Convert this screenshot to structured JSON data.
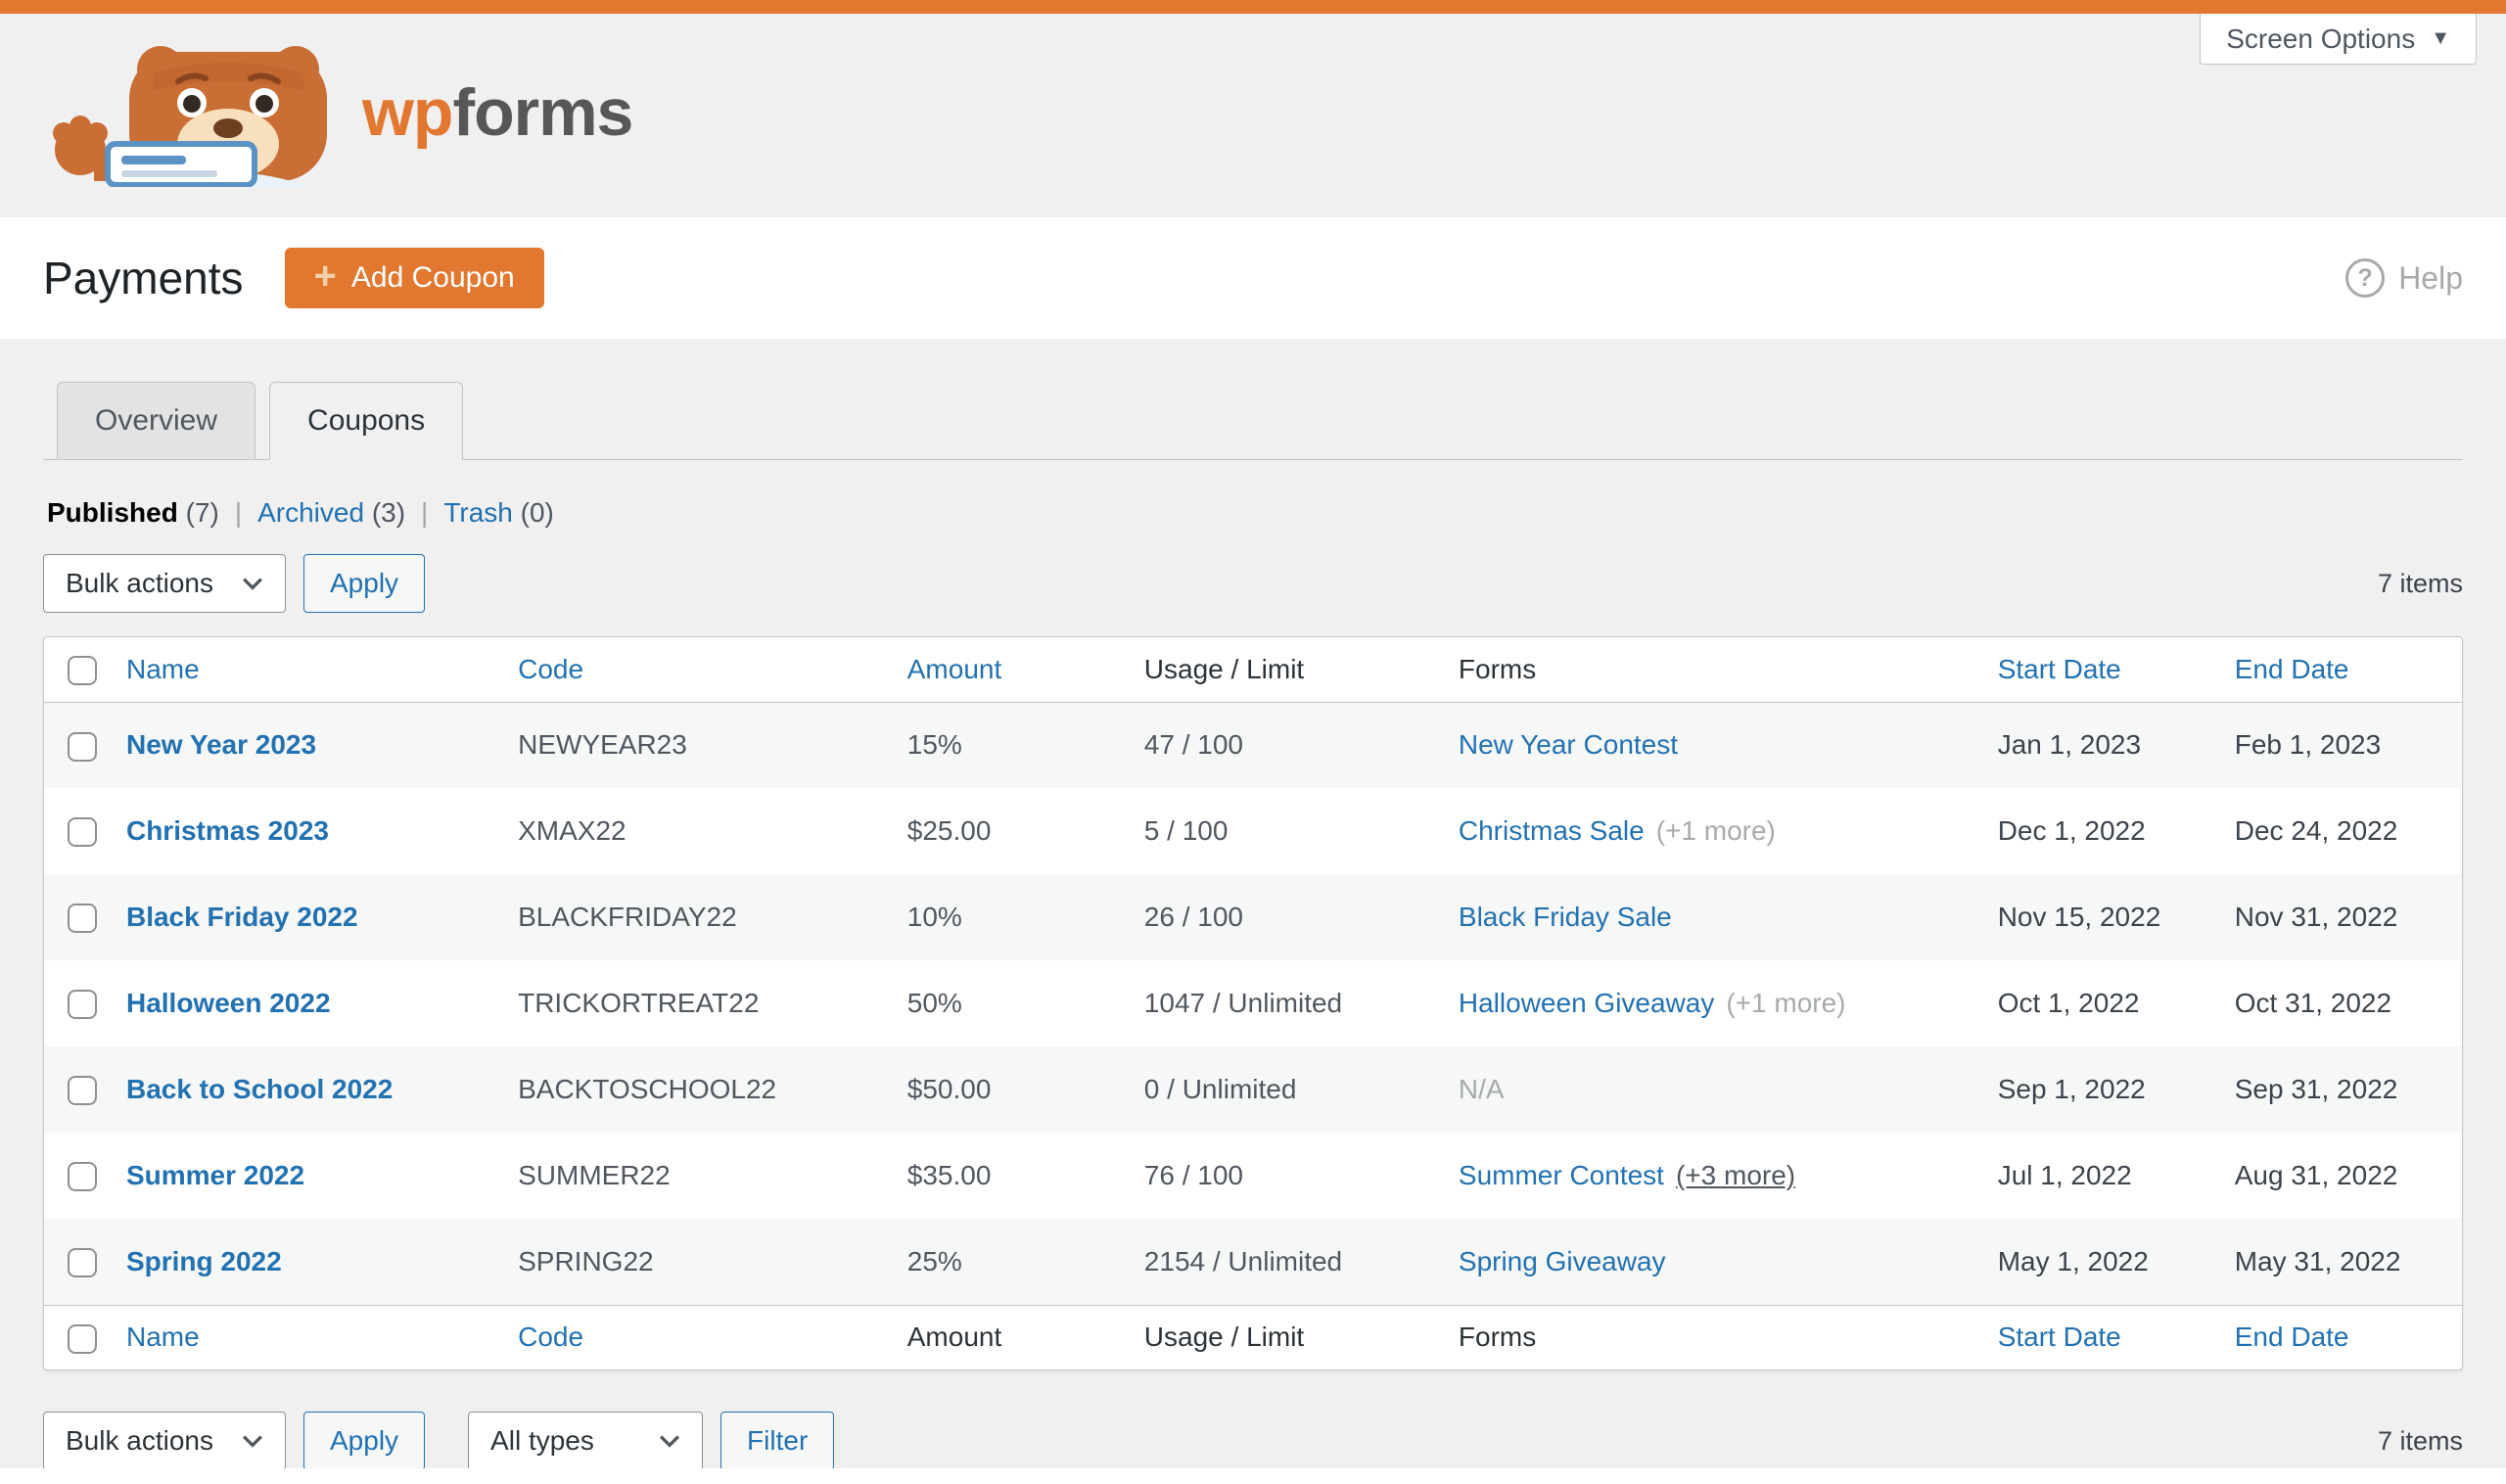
{
  "colors": {
    "accent_orange": "#e27730",
    "link_blue": "#2271b1",
    "page_bg": "#f0f0f1",
    "table_border": "#c3c4c7",
    "row_stripe": "#f6f7f7",
    "muted_text": "#a7aaad",
    "heading_text": "#1d2327"
  },
  "topbar": {
    "screen_options_label": "Screen Options"
  },
  "brand": {
    "logo_icon": "wpforms-bear-logo",
    "wordmark_wp": "wp",
    "wordmark_forms": "forms"
  },
  "page_header": {
    "title": "Payments",
    "add_coupon_label": "Add Coupon",
    "plus_glyph": "+",
    "help_label": "Help",
    "help_glyph": "?"
  },
  "tabs": [
    {
      "label": "Overview",
      "active": false
    },
    {
      "label": "Coupons",
      "active": true
    }
  ],
  "status_filters": [
    {
      "label": "Published",
      "count": "(7)",
      "current": true
    },
    {
      "label": "Archived",
      "count": "(3)",
      "current": false
    },
    {
      "label": "Trash",
      "count": "(0)",
      "current": false
    }
  ],
  "toolbar_top": {
    "bulk_actions_value": "Bulk actions",
    "apply_label": "Apply",
    "items_count": "7 items"
  },
  "toolbar_bottom": {
    "bulk_actions_value": "Bulk actions",
    "apply_label": "Apply",
    "type_filter_value": "All types",
    "filter_label": "Filter",
    "items_count": "7 items"
  },
  "table": {
    "columns": [
      {
        "label": "Name"
      },
      {
        "label": "Code"
      },
      {
        "label": "Amount"
      },
      {
        "label": "Usage / Limit"
      },
      {
        "label": "Forms"
      },
      {
        "label": "Start Date"
      },
      {
        "label": "End Date"
      }
    ],
    "rows": [
      {
        "name": "New Year 2023",
        "code": "NEWYEAR23",
        "amount": "15%",
        "usage": "47 / 100",
        "forms_link": "New Year Contest",
        "forms_extra": "",
        "forms_na": "",
        "forms_extra_underlined": false,
        "start_date": "Jan 1, 2023",
        "end_date": "Feb 1, 2023"
      },
      {
        "name": "Christmas 2023",
        "code": "XMAX22",
        "amount": "$25.00",
        "usage": "5 / 100",
        "forms_link": "Christmas Sale",
        "forms_extra": "(+1 more)",
        "forms_na": "",
        "forms_extra_underlined": false,
        "start_date": "Dec 1, 2022",
        "end_date": "Dec 24, 2022"
      },
      {
        "name": "Black Friday 2022",
        "code": "BLACKFRIDAY22",
        "amount": "10%",
        "usage": "26 / 100",
        "forms_link": "Black Friday Sale",
        "forms_extra": "",
        "forms_na": "",
        "forms_extra_underlined": false,
        "start_date": "Nov 15, 2022",
        "end_date": "Nov 31, 2022"
      },
      {
        "name": "Halloween 2022",
        "code": "TRICKORTREAT22",
        "amount": "50%",
        "usage": "1047 / Unlimited",
        "forms_link": "Halloween Giveaway",
        "forms_extra": "(+1 more)",
        "forms_na": "",
        "forms_extra_underlined": false,
        "start_date": "Oct 1, 2022",
        "end_date": "Oct 31, 2022"
      },
      {
        "name": "Back to School 2022",
        "code": "BACKTOSCHOOL22",
        "amount": "$50.00",
        "usage": "0 / Unlimited",
        "forms_link": "",
        "forms_extra": "",
        "forms_na": "N/A",
        "forms_extra_underlined": false,
        "start_date": "Sep 1, 2022",
        "end_date": "Sep 31, 2022"
      },
      {
        "name": "Summer 2022",
        "code": "SUMMER22",
        "amount": "$35.00",
        "usage": "76 / 100",
        "forms_link": "Summer Contest",
        "forms_extra": "(+3 more)",
        "forms_na": "",
        "forms_extra_underlined": true,
        "start_date": "Jul 1, 2022",
        "end_date": "Aug 31, 2022"
      },
      {
        "name": "Spring 2022",
        "code": "SPRING22",
        "amount": "25%",
        "usage": "2154 / Unlimited",
        "forms_link": "Spring Giveaway",
        "forms_extra": "",
        "forms_na": "",
        "forms_extra_underlined": false,
        "start_date": "May 1, 2022",
        "end_date": "May 31, 2022"
      }
    ]
  }
}
